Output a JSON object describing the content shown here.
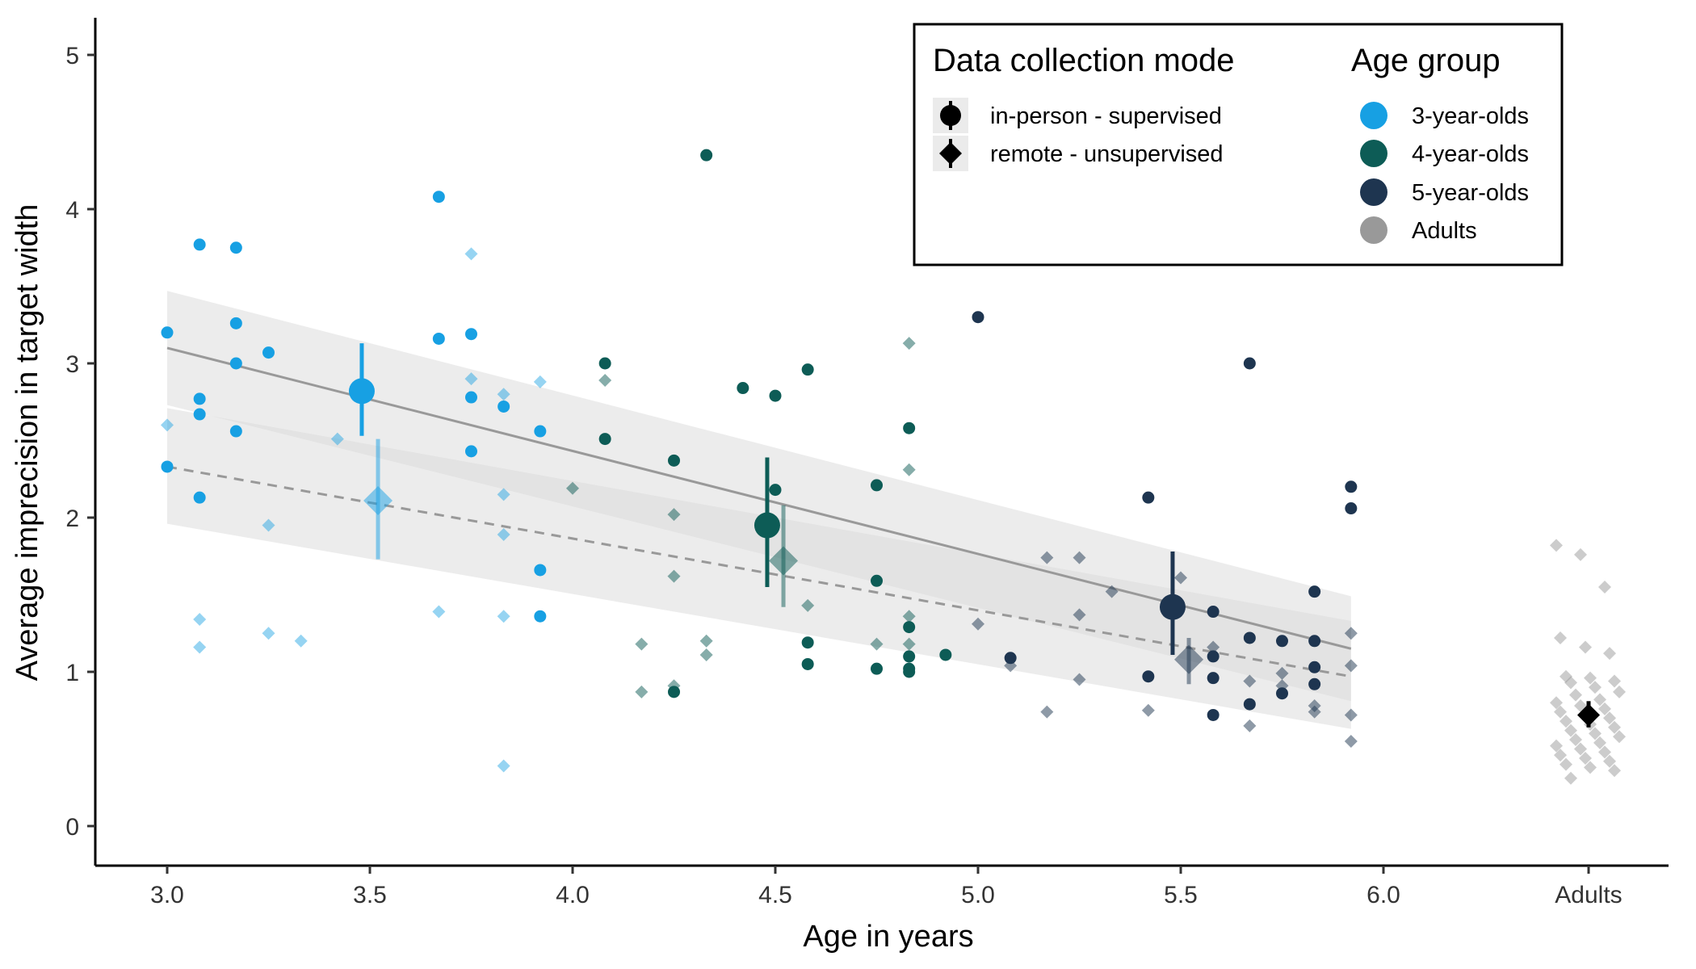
{
  "chart_data": {
    "type": "scatter",
    "title": "",
    "xlabel": "Age in years",
    "ylabel": "Average imprecision in target width",
    "xlim": [
      2.83,
      6.0
    ],
    "ylim": [
      -0.25,
      5.25
    ],
    "x_ticks": [
      3.0,
      3.5,
      4.0,
      4.5,
      5.0,
      5.5,
      6.0
    ],
    "x_tick_labels": [
      "3.0",
      "3.5",
      "4.0",
      "4.5",
      "5.0",
      "5.5",
      "6.0"
    ],
    "extra_category_label": "Adults",
    "y_ticks": [
      0,
      1,
      2,
      3,
      4,
      5
    ],
    "y_tick_labels": [
      "0",
      "1",
      "2",
      "3",
      "4",
      "5"
    ],
    "grid": false,
    "legend": {
      "placement": "top-right",
      "mode_title": "Data collection mode",
      "mode_items": [
        {
          "label": "in-person - supervised",
          "shape": "circle"
        },
        {
          "label": "remote - unsupervised",
          "shape": "diamond"
        }
      ],
      "group_title": "Age group",
      "group_items": [
        {
          "label": "3-year-olds",
          "color": "#17a0e3"
        },
        {
          "label": "4-year-olds",
          "color": "#0d5c56"
        },
        {
          "label": "5-year-olds",
          "color": "#1e3550"
        },
        {
          "label": "Adults",
          "color": "#999999"
        }
      ]
    },
    "colors": {
      "g3": "#17a0e3",
      "g4": "#0d5c56",
      "g5": "#1e3550",
      "adult": "#999999",
      "trend": "#999999",
      "band": "#d9d9d9"
    },
    "trend_lines": [
      {
        "mode": "in-person - supervised",
        "style": "solid",
        "x": [
          3.0,
          5.92
        ],
        "y": [
          3.1,
          1.15
        ],
        "band_upper": [
          3.47,
          1.49
        ],
        "band_lower": [
          2.73,
          0.81
        ]
      },
      {
        "mode": "remote - unsupervised",
        "style": "dashed",
        "x": [
          3.0,
          5.92
        ],
        "y": [
          2.33,
          0.97
        ],
        "band_upper": [
          2.71,
          1.33
        ],
        "band_lower": [
          1.96,
          0.63
        ]
      }
    ],
    "group_means": [
      {
        "group": "3-year-olds",
        "mode": "in-person - supervised",
        "x": 3.48,
        "y": 2.82,
        "lo": 2.53,
        "hi": 3.13
      },
      {
        "group": "3-year-olds",
        "mode": "remote - unsupervised",
        "x": 3.52,
        "y": 2.11,
        "lo": 1.73,
        "hi": 2.51
      },
      {
        "group": "4-year-olds",
        "mode": "in-person - supervised",
        "x": 4.48,
        "y": 1.95,
        "lo": 1.55,
        "hi": 2.39
      },
      {
        "group": "4-year-olds",
        "mode": "remote - unsupervised",
        "x": 4.52,
        "y": 1.72,
        "lo": 1.42,
        "hi": 2.08
      },
      {
        "group": "5-year-olds",
        "mode": "in-person - supervised",
        "x": 5.48,
        "y": 1.42,
        "lo": 1.11,
        "hi": 1.78
      },
      {
        "group": "5-year-olds",
        "mode": "remote - unsupervised",
        "x": 5.52,
        "y": 1.08,
        "lo": 0.92,
        "hi": 1.22
      },
      {
        "group": "Adults",
        "mode": "remote - unsupervised",
        "x": "Adults",
        "y": 0.72,
        "lo": 0.64,
        "hi": 0.81
      }
    ],
    "points_in_person": [
      {
        "group": "3-year-olds",
        "x": [
          3.0,
          3.0,
          3.08,
          3.08,
          3.08,
          3.08,
          3.17,
          3.17,
          3.17,
          3.17,
          3.25,
          3.67,
          3.67,
          3.75,
          3.75,
          3.75,
          3.83,
          3.92,
          3.92,
          3.92
        ],
        "y": [
          3.2,
          2.33,
          3.77,
          2.77,
          2.67,
          2.13,
          3.75,
          3.26,
          3.0,
          2.56,
          3.07,
          4.08,
          3.16,
          3.19,
          2.78,
          2.43,
          2.72,
          2.56,
          1.66,
          1.36
        ]
      },
      {
        "group": "4-year-olds",
        "x": [
          4.08,
          4.08,
          4.25,
          4.25,
          4.33,
          4.42,
          4.5,
          4.5,
          4.58,
          4.58,
          4.58,
          4.75,
          4.75,
          4.75,
          4.83,
          4.83,
          4.83,
          4.83,
          4.83,
          4.92
        ],
        "y": [
          3.0,
          2.51,
          2.37,
          0.87,
          4.35,
          2.84,
          2.79,
          2.18,
          2.96,
          1.19,
          1.05,
          2.21,
          1.59,
          1.02,
          2.58,
          1.29,
          1.1,
          1.02,
          1.0,
          1.11
        ]
      },
      {
        "group": "5-year-olds",
        "x": [
          5.0,
          5.08,
          5.42,
          5.42,
          5.58,
          5.58,
          5.58,
          5.58,
          5.67,
          5.67,
          5.67,
          5.75,
          5.75,
          5.83,
          5.83,
          5.83,
          5.83,
          5.92,
          5.92
        ],
        "y": [
          3.3,
          1.09,
          2.13,
          0.97,
          1.39,
          1.1,
          0.96,
          0.72,
          3.0,
          1.22,
          0.79,
          1.2,
          0.86,
          1.52,
          1.2,
          1.03,
          0.92,
          2.2,
          2.06
        ]
      }
    ],
    "points_remote": [
      {
        "group": "3-year-olds",
        "x": [
          3.0,
          3.08,
          3.08,
          3.25,
          3.25,
          3.33,
          3.42,
          3.67,
          3.75,
          3.75,
          3.83,
          3.83,
          3.83,
          3.83,
          3.83,
          3.92
        ],
        "y": [
          2.6,
          1.34,
          1.16,
          1.95,
          1.25,
          1.2,
          2.51,
          1.39,
          3.71,
          2.9,
          2.8,
          2.15,
          1.89,
          1.36,
          0.39,
          2.88
        ]
      },
      {
        "group": "4-year-olds",
        "x": [
          4.0,
          4.08,
          4.17,
          4.17,
          4.25,
          4.25,
          4.25,
          4.33,
          4.33,
          4.58,
          4.75,
          4.83,
          4.83,
          4.83,
          4.83
        ],
        "y": [
          2.19,
          2.89,
          1.18,
          0.87,
          2.02,
          1.62,
          0.91,
          1.2,
          1.11,
          1.43,
          1.18,
          3.13,
          2.31,
          1.36,
          1.18
        ]
      },
      {
        "group": "5-year-olds",
        "x": [
          5.0,
          5.08,
          5.17,
          5.17,
          5.25,
          5.25,
          5.25,
          5.33,
          5.42,
          5.5,
          5.58,
          5.67,
          5.67,
          5.75,
          5.75,
          5.83,
          5.83,
          5.92,
          5.92,
          5.92,
          5.92
        ],
        "y": [
          1.31,
          1.04,
          1.74,
          0.74,
          1.74,
          1.37,
          0.95,
          1.52,
          0.75,
          1.61,
          1.16,
          0.94,
          0.65,
          0.99,
          0.91,
          0.78,
          0.74,
          1.25,
          1.04,
          0.72,
          0.55
        ]
      },
      {
        "group": "Adults",
        "x": "Adults",
        "y": [
          1.82,
          1.76,
          1.55,
          1.22,
          1.16,
          1.12,
          0.97,
          0.96,
          0.94,
          0.93,
          0.9,
          0.87,
          0.85,
          0.82,
          0.8,
          0.78,
          0.76,
          0.74,
          0.72,
          0.7,
          0.68,
          0.66,
          0.64,
          0.62,
          0.6,
          0.58,
          0.56,
          0.54,
          0.52,
          0.5,
          0.48,
          0.46,
          0.44,
          0.42,
          0.4,
          0.38,
          0.36,
          0.31
        ]
      }
    ]
  }
}
